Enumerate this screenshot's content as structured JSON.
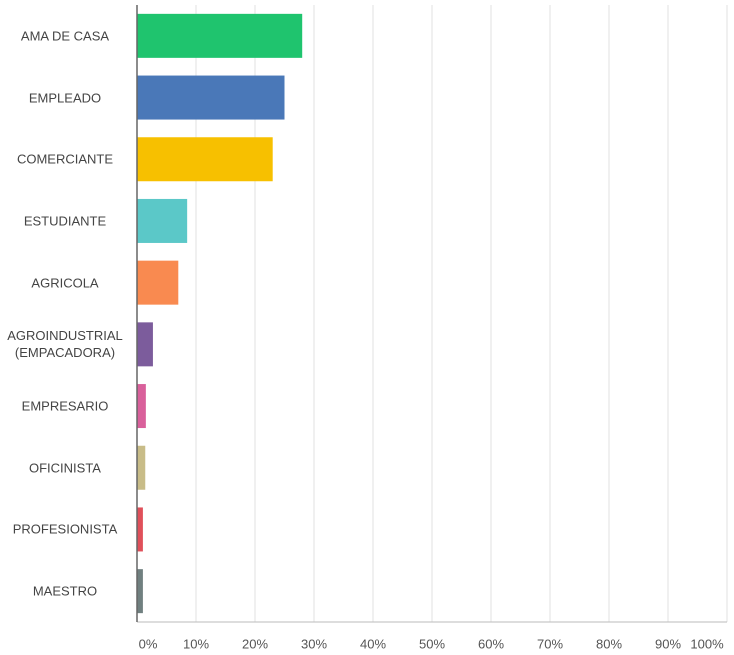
{
  "chart_data": {
    "type": "barh",
    "categories": [
      "AMA DE CASA",
      "EMPLEADO",
      "COMERCIANTE",
      "ESTUDIANTE",
      "AGRICOLA",
      "AGROINDUSTRIAL\n(EMPACADORA)",
      "EMPRESARIO",
      "OFICINISTA",
      "PROFESIONISTA",
      "MAESTRO"
    ],
    "values": [
      28,
      25,
      23,
      8.5,
      7,
      2.7,
      1.5,
      1.4,
      1,
      1
    ],
    "colors": [
      "#1fc46e",
      "#4a78b8",
      "#f7c000",
      "#5bc8c8",
      "#f98a50",
      "#7c5c9c",
      "#d9609b",
      "#c8bc88",
      "#e0505a",
      "#708080"
    ],
    "xlim": [
      0,
      100
    ],
    "xticks": [
      {
        "value": 0,
        "label": "0%"
      },
      {
        "value": 10,
        "label": "10%"
      },
      {
        "value": 20,
        "label": "20%"
      },
      {
        "value": 30,
        "label": "30%"
      },
      {
        "value": 40,
        "label": "40%"
      },
      {
        "value": 50,
        "label": "50%"
      },
      {
        "value": 60,
        "label": "60%"
      },
      {
        "value": 70,
        "label": "70%"
      },
      {
        "value": 80,
        "label": "80%"
      },
      {
        "value": 90,
        "label": "90%"
      },
      {
        "value": 100,
        "label": "100%"
      }
    ],
    "grid": true
  }
}
